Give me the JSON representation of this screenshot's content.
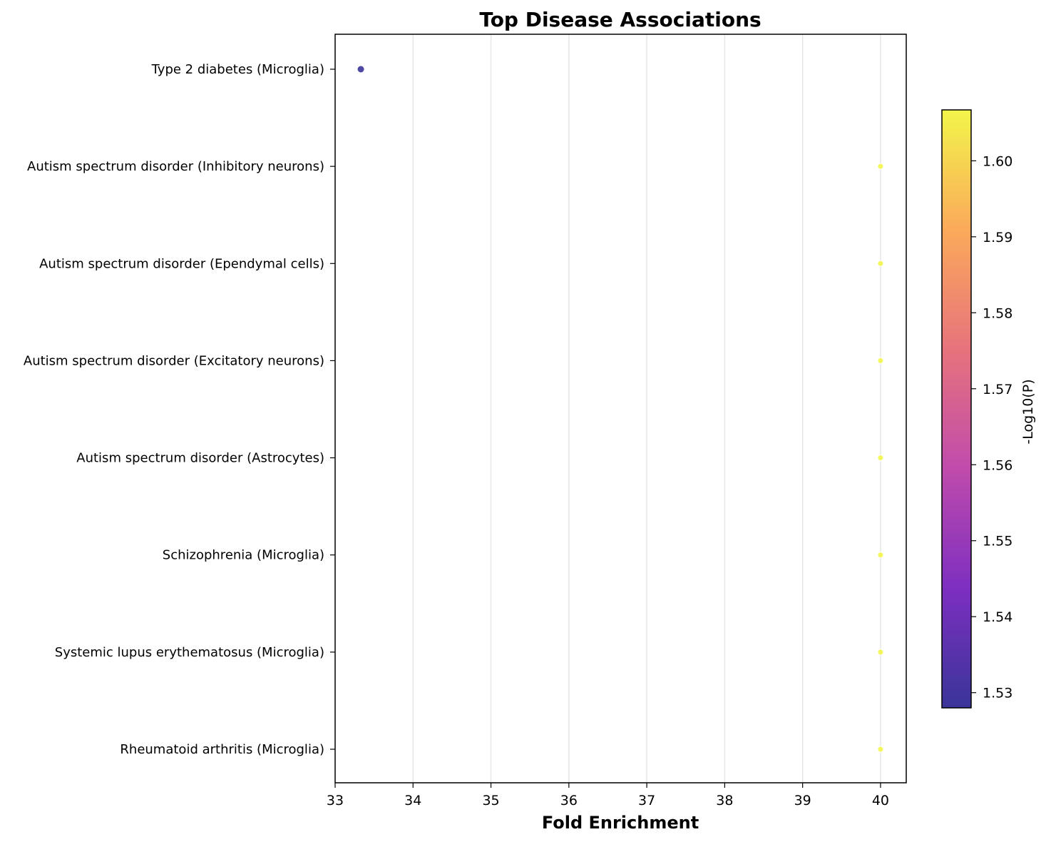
{
  "chart_data": {
    "type": "scatter",
    "title": "Top Disease Associations",
    "xlabel": "Fold Enrichment",
    "xlim": [
      33,
      40.33
    ],
    "xticks": [
      "33",
      "34",
      "35",
      "36",
      "37",
      "38",
      "39",
      "40"
    ],
    "grid": "vertical",
    "categories": [
      "Type 2 diabetes (Microglia)",
      "Autism spectrum disorder (Inhibitory neurons)",
      "Autism spectrum disorder (Ependymal cells)",
      "Autism spectrum disorder (Excitatory neurons)",
      "Autism spectrum disorder (Astrocytes)",
      "Schizophrenia (Microglia)",
      "Systemic lupus erythematosus (Microglia)",
      "Rheumatoid arthritis (Microglia)"
    ],
    "x": [
      33.33,
      40,
      40,
      40,
      40,
      40,
      40,
      40
    ],
    "color_values": [
      1.528,
      1.6067,
      1.6067,
      1.6067,
      1.6067,
      1.6067,
      1.6067,
      1.6067
    ],
    "colorbar": {
      "label": "-Log10(P)",
      "range": [
        1.528,
        1.6067
      ],
      "ticks": [
        "1.53",
        "1.54",
        "1.55",
        "1.56",
        "1.57",
        "1.58",
        "1.59",
        "1.60"
      ],
      "colormap": "plasma"
    }
  }
}
